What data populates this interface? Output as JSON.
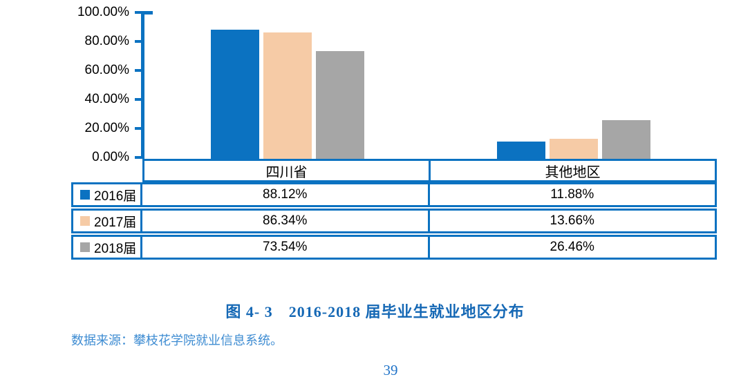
{
  "chart_data": {
    "type": "bar",
    "title": "图 4- 3　2016-2018 届毕业生就业地区分布",
    "categories": [
      "四川省",
      "其他地区"
    ],
    "series": [
      {
        "name": "2016届",
        "color": "#0B72C1",
        "values": [
          88.12,
          11.88
        ],
        "labels": [
          "88.12%",
          "11.88%"
        ]
      },
      {
        "name": "2017届",
        "color": "#F6CBA6",
        "values": [
          86.34,
          13.66
        ],
        "labels": [
          "86.34%",
          "13.66%"
        ]
      },
      {
        "name": "2018届",
        "color": "#A6A6A6",
        "values": [
          73.54,
          26.46
        ],
        "labels": [
          "73.54%",
          "26.46%"
        ]
      }
    ],
    "y_ticks": [
      "100.00%",
      "80.00%",
      "60.00%",
      "40.00%",
      "20.00%",
      "0.00%"
    ],
    "ylim": [
      0,
      100
    ],
    "grid": false,
    "legend_position": "left-table",
    "axis_color": "#0B72C1"
  },
  "caption": {
    "title": "图 4- 3　2016-2018 届毕业生就业地区分布"
  },
  "source_note": "数据来源：攀枝花学院就业信息系统。",
  "page_number": "39",
  "colors": {
    "table_border": "#0B72C1",
    "title_text": "#1568B5",
    "source_text": "#3E8CD2",
    "page_number_text": "#2073C8"
  }
}
